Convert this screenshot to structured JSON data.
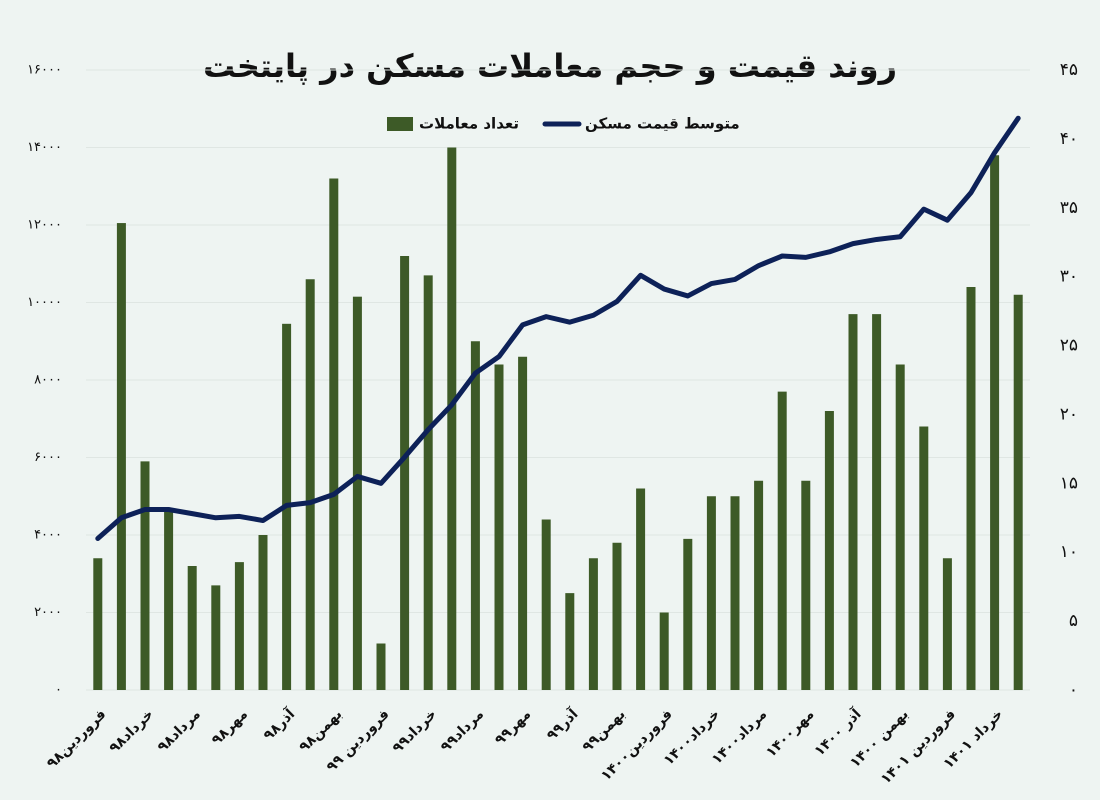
{
  "chart_data": {
    "type": "combo",
    "title": "روند قیمت و حجم معاملات مسکن در پایتخت",
    "categories": [
      "فروردین۹۸",
      null,
      "خرداد۹۸",
      null,
      "مرداد۹۸",
      null,
      "مهر۹۸",
      null,
      "آذر۹۸",
      null,
      "بهمن۹۸",
      null,
      "فروردین ۹۹",
      null,
      "خرداد۹۹",
      null,
      "مرداد۹۹",
      null,
      "مهر۹۹",
      null,
      "آذر۹۹",
      null,
      "بهمن۹۹",
      null,
      "فروردین۱۴۰۰",
      null,
      "خرداد۱۴۰۰",
      null,
      "مرداد۱۴۰۰",
      null,
      "مهر۱۴۰۰",
      null,
      "آذر ۱۴۰۰",
      null,
      "بهمن ۱۴۰۰",
      null,
      "فروردین ۱۴۰۱",
      null,
      "خرداد ۱۴۰۱",
      null
    ],
    "series": [
      {
        "name": "تعداد معاملات",
        "type": "bar",
        "color": "#3d5a27",
        "values": [
          3400,
          12050,
          5900,
          4600,
          3200,
          2700,
          3300,
          4000,
          9450,
          10600,
          13200,
          10150,
          1200,
          11200,
          10700,
          14000,
          9000,
          8400,
          8600,
          4400,
          2500,
          3400,
          3800,
          5200,
          2000,
          3900,
          5000,
          5000,
          5400,
          7700,
          5400,
          7200,
          9700,
          9700,
          8400,
          6800,
          3400,
          10400,
          13800,
          10200
        ]
      },
      {
        "name": "متوسط قیمت مسکن",
        "type": "line",
        "axis": "y2",
        "color": "#0d2158",
        "values": [
          11.0,
          12.5,
          13.1,
          13.1,
          12.8,
          12.5,
          12.6,
          12.3,
          13.4,
          13.6,
          14.2,
          15.5,
          15.0,
          16.9,
          18.9,
          20.7,
          23.0,
          24.2,
          26.5,
          27.1,
          26.7,
          27.2,
          28.2,
          30.1,
          29.1,
          28.6,
          29.5,
          29.8,
          30.8,
          31.5,
          31.4,
          31.8,
          32.4,
          32.7,
          32.9,
          34.9,
          34.1,
          36.1,
          39.0,
          41.5
        ]
      }
    ],
    "ylim": [
      0,
      16000
    ],
    "yticks": [
      {
        "value": 0,
        "label": "۰"
      },
      {
        "value": 2000,
        "label": "۲۰۰۰"
      },
      {
        "value": 4000,
        "label": "۴۰۰۰"
      },
      {
        "value": 6000,
        "label": "۶۰۰۰"
      },
      {
        "value": 8000,
        "label": "۸۰۰۰"
      },
      {
        "value": 10000,
        "label": "۱۰۰۰۰"
      },
      {
        "value": 12000,
        "label": "۱۲۰۰۰"
      },
      {
        "value": 14000,
        "label": "۱۴۰۰۰"
      },
      {
        "value": 16000,
        "label": "۱۶۰۰۰"
      }
    ],
    "y2lim": [
      0,
      45
    ],
    "y2ticks": [
      {
        "value": 0,
        "label": "۰"
      },
      {
        "value": 5,
        "label": "۵"
      },
      {
        "value": 10,
        "label": "۱۰"
      },
      {
        "value": 15,
        "label": "۱۵"
      },
      {
        "value": 20,
        "label": "۲۰"
      },
      {
        "value": 25,
        "label": "۲۵"
      },
      {
        "value": 30,
        "label": "۳۰"
      },
      {
        "value": 35,
        "label": "۳۵"
      },
      {
        "value": 40,
        "label": "۴۰"
      },
      {
        "value": 45,
        "label": "۴۵"
      }
    ],
    "grid": true
  }
}
